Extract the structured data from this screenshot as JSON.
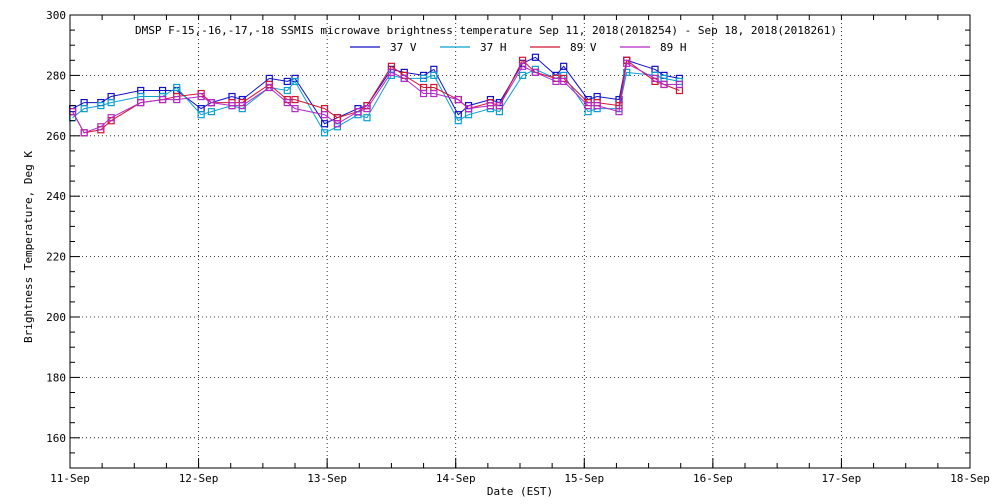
{
  "chart_data": {
    "type": "line",
    "title": "DMSP F-15,-16,-17,-18 SSMIS microwave brightness temperature Sep 11, 2018(2018254) - Sep 18, 2018(2018261)",
    "xlabel": "Date (EST)",
    "ylabel": "Brightness Temperature, Deg K",
    "xlim": [
      0,
      7
    ],
    "ylim": [
      150,
      300
    ],
    "x_tick_values": [
      0,
      1,
      2,
      3,
      4,
      5,
      6,
      7
    ],
    "x_tick_labels": [
      "11-Sep",
      "12-Sep",
      "13-Sep",
      "14-Sep",
      "15-Sep",
      "16-Sep",
      "17-Sep",
      "18-Sep"
    ],
    "y_tick_values": [
      160,
      180,
      200,
      220,
      240,
      260,
      280,
      300
    ],
    "y_tick_labels": [
      "160",
      "180",
      "200",
      "220",
      "240",
      "260",
      "280",
      "300"
    ],
    "grid": true,
    "legend_position": "top-center",
    "x_unit": "days since 11-Sep (EST)",
    "series": [
      {
        "name": "37 V",
        "color": "#1010c8",
        "x": [
          0.02,
          0.11,
          0.24,
          0.32,
          0.55,
          0.72,
          0.83,
          1.02,
          1.1,
          1.26,
          1.34,
          1.55,
          1.69,
          1.75,
          1.98,
          2.08,
          2.24,
          2.31,
          2.5,
          2.6,
          2.75,
          2.83,
          3.02,
          3.1,
          3.27,
          3.34,
          3.52,
          3.62,
          3.78,
          3.84,
          4.03,
          4.1,
          4.27,
          4.33,
          4.55,
          4.62,
          4.74
        ],
        "y": [
          269,
          271,
          271,
          273,
          275,
          275,
          275,
          269,
          271,
          273,
          272,
          279,
          278,
          279,
          264,
          266,
          269,
          270,
          282,
          281,
          280,
          282,
          267,
          270,
          272,
          271,
          284,
          286,
          280,
          283,
          272,
          273,
          272,
          285,
          282,
          280,
          279
        ]
      },
      {
        "name": "37 H",
        "color": "#0aa0d2",
        "x": [
          0.02,
          0.11,
          0.24,
          0.32,
          0.55,
          0.72,
          0.83,
          1.02,
          1.1,
          1.26,
          1.34,
          1.55,
          1.69,
          1.75,
          1.98,
          2.08,
          2.24,
          2.31,
          2.5,
          2.6,
          2.75,
          2.83,
          3.02,
          3.1,
          3.27,
          3.34,
          3.52,
          3.62,
          3.78,
          3.84,
          4.03,
          4.1,
          4.27,
          4.33,
          4.55,
          4.62,
          4.74
        ],
        "y": [
          266,
          269,
          270,
          271,
          273,
          273,
          276,
          267,
          268,
          270,
          269,
          276,
          275,
          278,
          261,
          263,
          267,
          266,
          280,
          279,
          279,
          280,
          265,
          267,
          269,
          268,
          280,
          282,
          279,
          280,
          268,
          269,
          269,
          281,
          280,
          279,
          278
        ]
      },
      {
        "name": "89 V",
        "color": "#d21432",
        "x": [
          0.02,
          0.11,
          0.24,
          0.32,
          0.55,
          0.72,
          0.83,
          1.02,
          1.1,
          1.26,
          1.34,
          1.55,
          1.69,
          1.75,
          1.98,
          2.08,
          2.24,
          2.31,
          2.5,
          2.6,
          2.75,
          2.83,
          3.02,
          3.1,
          3.27,
          3.34,
          3.52,
          3.62,
          3.78,
          3.84,
          4.03,
          4.1,
          4.27,
          4.33,
          4.55,
          4.62,
          4.74
        ],
        "y": [
          268,
          261,
          262,
          265,
          271,
          272,
          273,
          274,
          271,
          271,
          271,
          277,
          272,
          272,
          269,
          266,
          268,
          270,
          283,
          280,
          276,
          276,
          272,
          269,
          271,
          270,
          285,
          281,
          279,
          279,
          271,
          271,
          270,
          285,
          278,
          277,
          275
        ]
      },
      {
        "name": "89 H",
        "color": "#b428c8",
        "x": [
          0.02,
          0.11,
          0.24,
          0.32,
          0.55,
          0.72,
          0.83,
          1.02,
          1.1,
          1.26,
          1.34,
          1.55,
          1.69,
          1.75,
          1.98,
          2.08,
          2.24,
          2.31,
          2.5,
          2.6,
          2.75,
          2.83,
          3.02,
          3.1,
          3.27,
          3.34,
          3.52,
          3.62,
          3.78,
          3.84,
          4.03,
          4.1,
          4.27,
          4.33,
          4.55,
          4.62,
          4.74
        ],
        "y": [
          268,
          261,
          263,
          266,
          271,
          272,
          272,
          273,
          271,
          270,
          270,
          276,
          271,
          269,
          267,
          264,
          268,
          269,
          281,
          279,
          274,
          274,
          272,
          269,
          270,
          270,
          283,
          281,
          278,
          278,
          270,
          270,
          268,
          284,
          279,
          277,
          277
        ]
      }
    ]
  }
}
